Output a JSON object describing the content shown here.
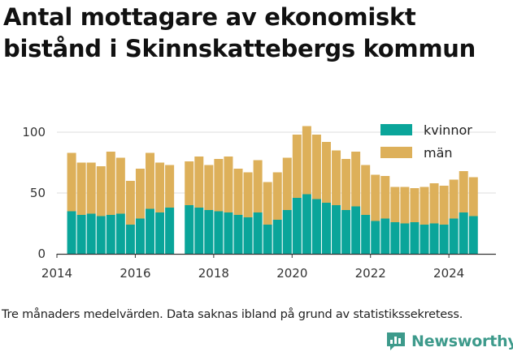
{
  "chart_data": {
    "type": "bar",
    "stacked": true,
    "title": "Antal mottagare av ekonomiskt bistånd i Skinnskattebergs kommun",
    "xlabel": "",
    "ylabel": "",
    "ylim": [
      0,
      110
    ],
    "yticks": [
      "0",
      "50",
      "100"
    ],
    "xticks": [
      "2014",
      "2016",
      "2018",
      "2020",
      "2022",
      "2024"
    ],
    "xlim": [
      2014.0,
      2025.2
    ],
    "grid": true,
    "legend_position": "top-right",
    "colors": {
      "kvinnor": "#0aa59a",
      "män": "#ddb05a",
      "grid": "#dddddd"
    },
    "x": [
      2014.375,
      2014.625,
      2014.875,
      2015.125,
      2015.375,
      2015.625,
      2015.875,
      2016.125,
      2016.375,
      2016.625,
      2016.875,
      2017.375,
      2017.625,
      2017.875,
      2018.125,
      2018.375,
      2018.625,
      2018.875,
      2019.125,
      2019.375,
      2019.625,
      2019.875,
      2020.125,
      2020.375,
      2020.625,
      2020.875,
      2021.125,
      2021.375,
      2021.625,
      2021.875,
      2022.125,
      2022.375,
      2022.625,
      2022.875,
      2023.125,
      2023.375,
      2023.625,
      2023.875,
      2024.125,
      2024.375,
      2024.625
    ],
    "series": [
      {
        "name": "kvinnor",
        "values": [
          35,
          32,
          33,
          31,
          32,
          33,
          24,
          29,
          37,
          34,
          38,
          40,
          38,
          36,
          35,
          34,
          32,
          30,
          34,
          24,
          28,
          36,
          46,
          49,
          45,
          42,
          40,
          36,
          39,
          32,
          27,
          29,
          26,
          25,
          26,
          24,
          25,
          24,
          29,
          34,
          31
        ]
      },
      {
        "name": "män",
        "values": [
          48,
          43,
          42,
          41,
          52,
          46,
          36,
          41,
          46,
          41,
          35,
          36,
          42,
          37,
          43,
          46,
          38,
          37,
          43,
          35,
          39,
          43,
          52,
          56,
          53,
          50,
          45,
          42,
          45,
          41,
          38,
          35,
          29,
          30,
          28,
          31,
          33,
          32,
          32,
          34,
          32
        ]
      }
    ]
  },
  "footnote": "Tre månaders medelvärden. Data saknas ibland på grund av statistikssekretess.",
  "brand": {
    "name": "Newsworthy",
    "icon": "newsworthy-logo-icon"
  }
}
